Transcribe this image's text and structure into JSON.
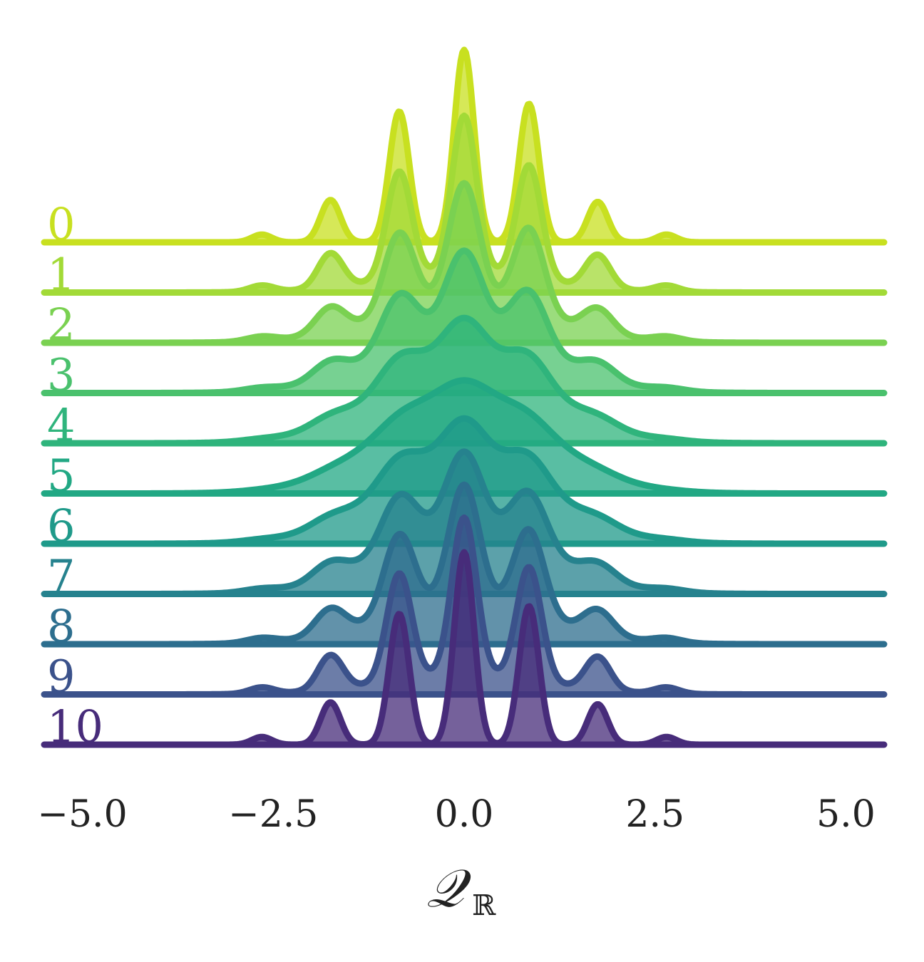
{
  "chart_data": {
    "type": "area",
    "title": "",
    "xlabel": "𝒬",
    "xlabel_sub": "ℝ",
    "ylabel": "",
    "xlim": [
      -5.5,
      5.5
    ],
    "xticks": [
      -5.0,
      -2.5,
      0.0,
      2.5,
      5.0
    ],
    "xtick_labels": [
      "−5.0",
      "−2.5",
      "0.0",
      "2.5",
      "5.0"
    ],
    "grid": false,
    "legend": "none",
    "series": [
      {
        "name": "0",
        "color": "#c8e020",
        "sharpness": 1.0
      },
      {
        "name": "1",
        "color": "#a2da37",
        "sharpness": 0.82
      },
      {
        "name": "2",
        "color": "#7ad151",
        "sharpness": 0.62
      },
      {
        "name": "3",
        "color": "#4ac16d",
        "sharpness": 0.42
      },
      {
        "name": "4",
        "color": "#2fb47c",
        "sharpness": 0.22
      },
      {
        "name": "5",
        "color": "#22a884",
        "sharpness": 0.08
      },
      {
        "name": "6",
        "color": "#1f9a8a",
        "sharpness": 0.22
      },
      {
        "name": "7",
        "color": "#26828e",
        "sharpness": 0.42
      },
      {
        "name": "8",
        "color": "#2d6e8e",
        "sharpness": 0.62
      },
      {
        "name": "9",
        "color": "#3b528b",
        "sharpness": 0.82
      },
      {
        "name": "10",
        "color": "#472c7a",
        "sharpness": 1.0
      }
    ]
  }
}
